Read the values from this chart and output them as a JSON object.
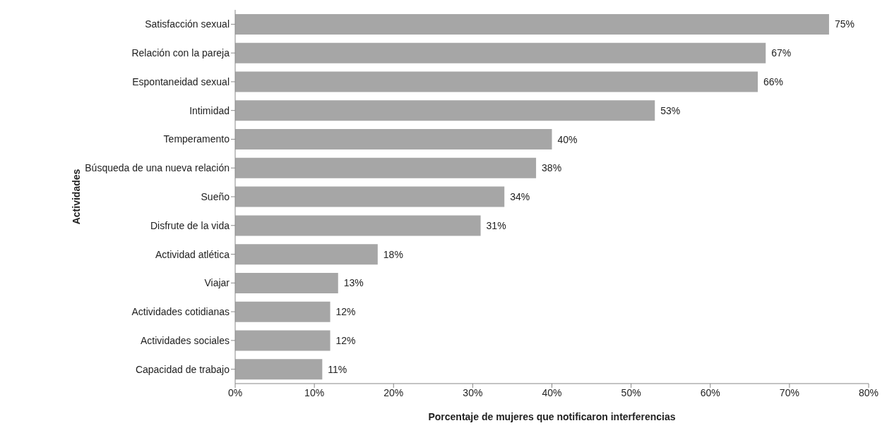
{
  "chart_data": {
    "type": "bar",
    "orientation": "horizontal",
    "xlabel": "Porcentaje de mujeres que notificaron interferencias",
    "ylabel": "Actividades",
    "categories": [
      "Satisfacción sexual",
      "Relación con la pareja",
      "Espontaneidad sexual",
      "Intimidad",
      "Temperamento",
      "Búsqueda de una nueva relación",
      "Sueño",
      "Disfrute de la vida",
      "Actividad atlética",
      "Viajar",
      "Actividades cotidianas",
      "Actividades sociales",
      "Capacidad de trabajo"
    ],
    "values": [
      75,
      67,
      66,
      53,
      40,
      38,
      34,
      31,
      18,
      13,
      12,
      12,
      11
    ],
    "value_labels": [
      "75%",
      "67%",
      "66%",
      "53%",
      "40%",
      "38%",
      "34%",
      "31%",
      "18%",
      "13%",
      "12%",
      "12%",
      "11%"
    ],
    "color": "#a6a6a6",
    "xlim": [
      0,
      80
    ],
    "xticks": [
      {
        "value": 0,
        "label": "0%"
      },
      {
        "value": 10,
        "label": "10%"
      },
      {
        "value": 20,
        "label": "20%"
      },
      {
        "value": 30,
        "label": "30%"
      },
      {
        "value": 40,
        "label": "40%"
      },
      {
        "value": 50,
        "label": "50%"
      },
      {
        "value": 60,
        "label": "60%"
      },
      {
        "value": 70,
        "label": "70%"
      },
      {
        "value": 80,
        "label": "80%"
      }
    ],
    "grid": false,
    "legend": false
  }
}
